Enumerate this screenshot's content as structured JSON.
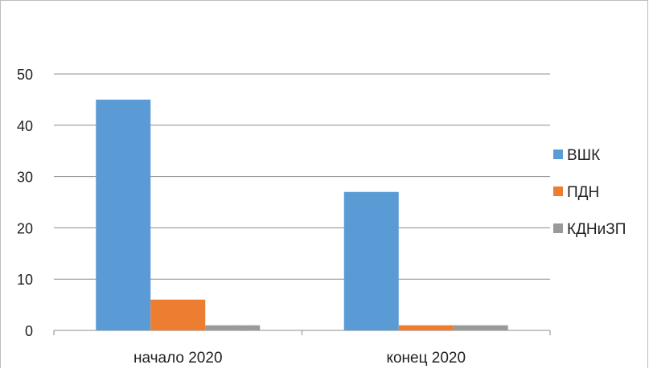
{
  "chart_data": {
    "type": "bar",
    "categories": [
      "начало 2020",
      "конец 2020"
    ],
    "series": [
      {
        "name": "ВШК",
        "values": [
          45,
          27
        ],
        "color": "#5b9bd5"
      },
      {
        "name": "ПДН",
        "values": [
          6,
          1
        ],
        "color": "#ed7d31"
      },
      {
        "name": "КДНиЗП",
        "values": [
          1,
          1
        ],
        "color": "#a5a5a5"
      }
    ],
    "ylim": [
      0,
      50
    ],
    "yticks": [
      0,
      10,
      20,
      30,
      40,
      50
    ],
    "grid": true,
    "legend": "right",
    "title": "",
    "xlabel": "",
    "ylabel": ""
  }
}
